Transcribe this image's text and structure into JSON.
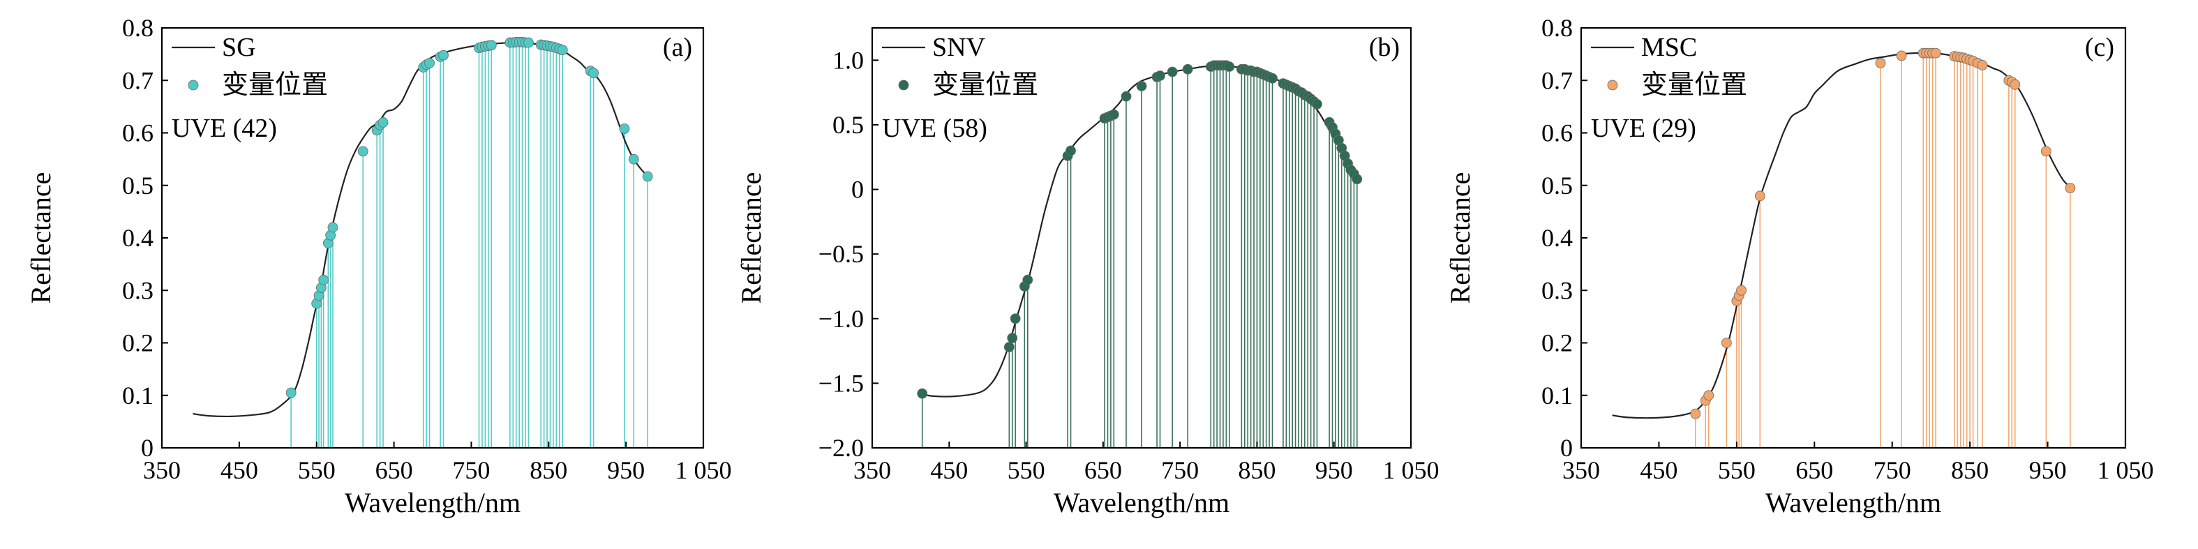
{
  "chart_data": [
    {
      "type": "line",
      "panel_label": "(a)",
      "xlabel": "Wavelength/nm",
      "ylabel": "Reflectance",
      "xlim": [
        350,
        1050
      ],
      "ylim": [
        0,
        0.8
      ],
      "x_ticks": [
        350,
        450,
        550,
        650,
        750,
        850,
        950,
        1050
      ],
      "x_tick_labels": [
        "350",
        "450",
        "550",
        "650",
        "750",
        "850",
        "950",
        "1 050"
      ],
      "y_ticks": [
        0,
        0.1,
        0.2,
        0.3,
        0.4,
        0.5,
        0.6,
        0.7,
        0.8
      ],
      "y_tick_labels": [
        "0",
        "0.1",
        "0.2",
        "0.3",
        "0.4",
        "0.5",
        "0.6",
        "0.7",
        "0.8"
      ],
      "grid": false,
      "legend_position": "top-left",
      "annotation": "UVE (42)",
      "series": [
        {
          "name": "SG",
          "kind": "line",
          "color": "#222222",
          "x": [
            390,
            410,
            440,
            470,
            490,
            505,
            520,
            530,
            540,
            548,
            555,
            560,
            565,
            570,
            580,
            590,
            600,
            610,
            620,
            630,
            640,
            650,
            660,
            670,
            680,
            690,
            700,
            720,
            740,
            760,
            780,
            800,
            810,
            820,
            830,
            840,
            850,
            860,
            870,
            880,
            890,
            900,
            910,
            920,
            930,
            940,
            950,
            960,
            970,
            980
          ],
          "y": [
            0.065,
            0.061,
            0.06,
            0.063,
            0.068,
            0.082,
            0.105,
            0.145,
            0.205,
            0.26,
            0.3,
            0.345,
            0.385,
            0.42,
            0.48,
            0.53,
            0.565,
            0.59,
            0.61,
            0.62,
            0.64,
            0.645,
            0.66,
            0.69,
            0.718,
            0.733,
            0.745,
            0.755,
            0.762,
            0.767,
            0.77,
            0.772,
            0.773,
            0.772,
            0.77,
            0.768,
            0.765,
            0.76,
            0.755,
            0.745,
            0.735,
            0.72,
            0.71,
            0.69,
            0.66,
            0.62,
            0.58,
            0.55,
            0.53,
            0.515
          ]
        },
        {
          "name": "变量位置",
          "kind": "markers",
          "color": "#4fc9c4",
          "x": [
            517,
            550,
            553,
            556,
            559,
            565,
            568,
            571,
            610,
            628,
            632,
            636,
            688,
            692,
            696,
            710,
            714,
            760,
            764,
            768,
            772,
            776,
            800,
            804,
            808,
            812,
            816,
            820,
            824,
            840,
            844,
            848,
            852,
            856,
            860,
            864,
            868,
            904,
            908,
            948,
            960,
            978
          ],
          "y": [
            0.105,
            0.275,
            0.29,
            0.305,
            0.32,
            0.39,
            0.405,
            0.42,
            0.565,
            0.605,
            0.615,
            0.62,
            0.725,
            0.73,
            0.733,
            0.745,
            0.748,
            0.762,
            0.764,
            0.765,
            0.766,
            0.767,
            0.772,
            0.772,
            0.773,
            0.773,
            0.773,
            0.772,
            0.772,
            0.768,
            0.767,
            0.766,
            0.765,
            0.764,
            0.762,
            0.76,
            0.758,
            0.718,
            0.714,
            0.608,
            0.55,
            0.517
          ]
        }
      ]
    },
    {
      "type": "line",
      "panel_label": "(b)",
      "xlabel": "Wavelength/nm",
      "ylabel": "Reflectance",
      "xlim": [
        350,
        1050
      ],
      "ylim": [
        -2.0,
        1.25
      ],
      "x_ticks": [
        350,
        450,
        550,
        650,
        750,
        850,
        950,
        1050
      ],
      "x_tick_labels": [
        "350",
        "450",
        "550",
        "650",
        "750",
        "850",
        "950",
        "1 050"
      ],
      "y_ticks": [
        -2.0,
        -1.5,
        -1.0,
        -0.5,
        0,
        0.5,
        1.0
      ],
      "y_tick_labels": [
        "−2.0",
        "−1.5",
        "−1.0",
        "−0.5",
        "0",
        "0.5",
        "1.0"
      ],
      "grid": false,
      "legend_position": "top-left",
      "annotation": "UVE (58)",
      "series": [
        {
          "name": "SNV",
          "kind": "line",
          "color": "#222222",
          "x": [
            412,
            430,
            460,
            490,
            505,
            515,
            525,
            535,
            545,
            555,
            565,
            575,
            590,
            600,
            610,
            620,
            630,
            640,
            650,
            660,
            670,
            680,
            690,
            700,
            720,
            740,
            760,
            780,
            800,
            810,
            820,
            830,
            840,
            850,
            860,
            870,
            880,
            890,
            900,
            910,
            920,
            930,
            940,
            950,
            960,
            970,
            980
          ],
          "y": [
            -1.58,
            -1.6,
            -1.6,
            -1.57,
            -1.5,
            -1.4,
            -1.25,
            -1.05,
            -0.85,
            -0.65,
            -0.4,
            -0.15,
            0.15,
            0.25,
            0.33,
            0.4,
            0.45,
            0.5,
            0.55,
            0.6,
            0.66,
            0.74,
            0.8,
            0.84,
            0.88,
            0.91,
            0.93,
            0.95,
            0.96,
            0.96,
            0.95,
            0.94,
            0.92,
            0.9,
            0.88,
            0.86,
            0.84,
            0.81,
            0.78,
            0.73,
            0.67,
            0.6,
            0.5,
            0.4,
            0.3,
            0.2,
            0.08
          ]
        },
        {
          "name": "变量位置",
          "kind": "markers",
          "color": "#2f6b52",
          "x": [
            415,
            528,
            532,
            536,
            548,
            552,
            604,
            608,
            652,
            656,
            660,
            664,
            680,
            700,
            720,
            724,
            740,
            760,
            790,
            794,
            798,
            802,
            806,
            810,
            814,
            830,
            834,
            838,
            842,
            846,
            850,
            854,
            858,
            862,
            866,
            870,
            884,
            888,
            892,
            896,
            900,
            904,
            908,
            912,
            916,
            920,
            924,
            928,
            944,
            948,
            952,
            956,
            960,
            964,
            968,
            972,
            976,
            980
          ],
          "y": [
            -1.58,
            -1.22,
            -1.15,
            -1.0,
            -0.75,
            -0.7,
            0.26,
            0.3,
            0.55,
            0.56,
            0.57,
            0.58,
            0.72,
            0.8,
            0.87,
            0.88,
            0.91,
            0.93,
            0.95,
            0.96,
            0.96,
            0.96,
            0.96,
            0.96,
            0.95,
            0.93,
            0.93,
            0.92,
            0.92,
            0.91,
            0.91,
            0.9,
            0.89,
            0.88,
            0.87,
            0.86,
            0.82,
            0.81,
            0.8,
            0.79,
            0.78,
            0.76,
            0.75,
            0.73,
            0.72,
            0.7,
            0.68,
            0.66,
            0.52,
            0.48,
            0.43,
            0.38,
            0.32,
            0.26,
            0.2,
            0.15,
            0.12,
            0.08
          ]
        }
      ]
    },
    {
      "type": "line",
      "panel_label": "(c)",
      "xlabel": "Wavelength/nm",
      "ylabel": "Reflectance",
      "xlim": [
        350,
        1050
      ],
      "ylim": [
        0,
        0.8
      ],
      "x_ticks": [
        350,
        450,
        550,
        650,
        750,
        850,
        950,
        1050
      ],
      "x_tick_labels": [
        "350",
        "450",
        "550",
        "650",
        "750",
        "850",
        "950",
        "1 050"
      ],
      "y_ticks": [
        0,
        0.1,
        0.2,
        0.3,
        0.4,
        0.5,
        0.6,
        0.7,
        0.8
      ],
      "y_tick_labels": [
        "0",
        "0.1",
        "0.2",
        "0.3",
        "0.4",
        "0.5",
        "0.6",
        "0.7",
        "0.8"
      ],
      "grid": false,
      "legend_position": "top-left",
      "annotation": "UVE (29)",
      "series": [
        {
          "name": "MSC",
          "kind": "line",
          "color": "#222222",
          "x": [
            390,
            410,
            440,
            470,
            490,
            500,
            510,
            520,
            530,
            540,
            550,
            560,
            570,
            580,
            590,
            600,
            610,
            620,
            630,
            640,
            650,
            660,
            670,
            680,
            690,
            700,
            720,
            740,
            760,
            780,
            800,
            810,
            820,
            830,
            840,
            850,
            860,
            870,
            880,
            890,
            900,
            910,
            920,
            930,
            940,
            950,
            960,
            970,
            980
          ],
          "y": [
            0.062,
            0.058,
            0.057,
            0.06,
            0.066,
            0.074,
            0.09,
            0.115,
            0.155,
            0.205,
            0.27,
            0.34,
            0.41,
            0.475,
            0.52,
            0.56,
            0.6,
            0.63,
            0.64,
            0.65,
            0.675,
            0.69,
            0.705,
            0.718,
            0.725,
            0.73,
            0.74,
            0.745,
            0.75,
            0.752,
            0.752,
            0.751,
            0.749,
            0.746,
            0.742,
            0.739,
            0.735,
            0.73,
            0.723,
            0.717,
            0.705,
            0.69,
            0.665,
            0.635,
            0.6,
            0.565,
            0.535,
            0.51,
            0.495
          ]
        },
        {
          "name": "变量位置",
          "kind": "markers",
          "color": "#f2a56a",
          "x": [
            497,
            510,
            514,
            537,
            550,
            553,
            556,
            580,
            735,
            762,
            790,
            794,
            798,
            802,
            806,
            830,
            834,
            838,
            842,
            846,
            850,
            854,
            860,
            866,
            900,
            904,
            908,
            948,
            979
          ],
          "y": [
            0.065,
            0.09,
            0.1,
            0.2,
            0.28,
            0.29,
            0.3,
            0.48,
            0.733,
            0.747,
            0.752,
            0.752,
            0.752,
            0.752,
            0.752,
            0.746,
            0.745,
            0.744,
            0.743,
            0.741,
            0.739,
            0.737,
            0.733,
            0.729,
            0.7,
            0.697,
            0.692,
            0.565,
            0.495
          ]
        }
      ]
    }
  ]
}
